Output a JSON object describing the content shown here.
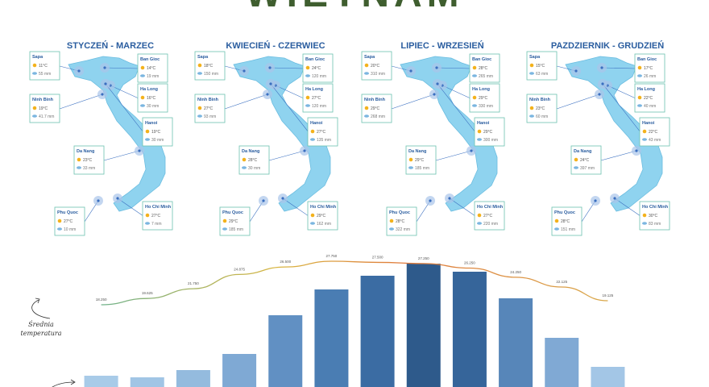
{
  "title": "WIETNAM",
  "panels": [
    {
      "title": "STYCZEŃ - MARZEC",
      "cities": [
        {
          "name": "Sapa",
          "temp": "11°C",
          "rain": "55 mm"
        },
        {
          "name": "Ban Gioc",
          "temp": "14°C",
          "rain": "19 mm"
        },
        {
          "name": "Ha Long",
          "temp": "16°C",
          "rain": "30 mm"
        },
        {
          "name": "Ninh Binh",
          "temp": "19°C",
          "rain": "41.7 mm"
        },
        {
          "name": "Hanoi",
          "temp": "19°C",
          "rain": "30 mm"
        },
        {
          "name": "Da Nang",
          "temp": "23°C",
          "rain": "33 mm"
        },
        {
          "name": "Phu Quoc",
          "temp": "27°C",
          "rain": "10 mm"
        },
        {
          "name": "Ho Chi Minh",
          "temp": "27°C",
          "rain": "7 mm"
        }
      ]
    },
    {
      "title": "KWIECIEŃ - CZERWIEC",
      "cities": [
        {
          "name": "Sapa",
          "temp": "18°C",
          "rain": "150 mm"
        },
        {
          "name": "Ban Gioc",
          "temp": "24°C",
          "rain": "120 mm"
        },
        {
          "name": "Ha Long",
          "temp": "27°C",
          "rain": "120 mm"
        },
        {
          "name": "Ninh Binh",
          "temp": "27°C",
          "rain": "93 mm"
        },
        {
          "name": "Hanoi",
          "temp": "27°C",
          "rain": "135 mm"
        },
        {
          "name": "Da Nang",
          "temp": "28°C",
          "rain": "30 mm"
        },
        {
          "name": "Phu Quoc",
          "temp": "29°C",
          "rain": "185 mm"
        },
        {
          "name": "Ho Chi Minh",
          "temp": "29°C",
          "rain": "162 mm"
        }
      ]
    },
    {
      "title": "LIPIEC - WRZESIEŃ",
      "cities": [
        {
          "name": "Sapa",
          "temp": "20°C",
          "rain": "310 mm"
        },
        {
          "name": "Ban Gioc",
          "temp": "28°C",
          "rain": "265 mm"
        },
        {
          "name": "Ha Long",
          "temp": "29°C",
          "rain": "330 mm"
        },
        {
          "name": "Ninh Binh",
          "temp": "29°C",
          "rain": "268 mm"
        },
        {
          "name": "Hanoi",
          "temp": "29°C",
          "rain": "300 mm"
        },
        {
          "name": "Da Nang",
          "temp": "29°C",
          "rain": "185 mm"
        },
        {
          "name": "Phu Quoc",
          "temp": "28°C",
          "rain": "322 mm"
        },
        {
          "name": "Ho Chi Minh",
          "temp": "27°C",
          "rain": "220 mm"
        }
      ]
    },
    {
      "title": "PAZDZIERNIK - GRUDZIEŃ",
      "cities": [
        {
          "name": "Sapa",
          "temp": "15°C",
          "rain": "63 mm"
        },
        {
          "name": "Ban Gioc",
          "temp": "17°C",
          "rain": "26 mm"
        },
        {
          "name": "Ha Long",
          "temp": "22°C",
          "rain": "40 mm"
        },
        {
          "name": "Ninh Binh",
          "temp": "23°C",
          "rain": "60 mm"
        },
        {
          "name": "Hanoi",
          "temp": "22°C",
          "rain": "43 mm"
        },
        {
          "name": "Da Nang",
          "temp": "24°C",
          "rain": "397 mm"
        },
        {
          "name": "Phu Quoc",
          "temp": "28°C",
          "rain": "151 mm"
        },
        {
          "name": "Ho Chi Minh",
          "temp": "30°C",
          "rain": "83 mm"
        }
      ]
    }
  ],
  "chart_data": [
    {
      "type": "bar",
      "values": [
        14,
        12,
        21,
        41,
        89,
        121,
        138,
        153,
        143,
        110,
        61,
        25
      ],
      "colors": [
        "#a8cbe8",
        "#a1c5e5",
        "#94bbde",
        "#7fa9d4",
        "#6190c3",
        "#4a7db3",
        "#3b6ca3",
        "#2e5a8b",
        "#36659a",
        "#5786b9",
        "#80a9d4",
        "#a3c6e6"
      ]
    },
    {
      "type": "line",
      "annotation": "Średnia temperatura",
      "values": [
        18.25,
        19.625,
        21.75,
        24.875,
        26.5,
        27.75,
        27.5,
        27.25,
        26.25,
        24.25,
        22.125,
        19.125
      ],
      "value_labels": [
        "18.250",
        "19.625",
        "21.750",
        "24.875",
        "26.500",
        "27.750",
        "27.500",
        "27.250",
        "26.250",
        "24.250",
        "22.125",
        "19.125"
      ]
    }
  ]
}
